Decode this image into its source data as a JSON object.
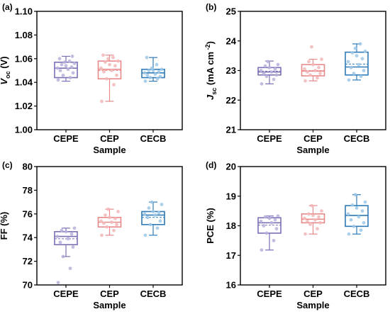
{
  "chart_data": [
    {
      "type": "box",
      "panel": "(a)",
      "categories": [
        "CEPE",
        "CEP",
        "CECB"
      ],
      "ylabel": {
        "main": "V",
        "sub": "oc",
        "unit": " (V)"
      },
      "xlabel": "Sample",
      "ylim": [
        1.0,
        1.1
      ],
      "yticks": [
        "1.00",
        "1.02",
        "1.04",
        "1.06",
        "1.08",
        "1.10"
      ],
      "ytick_values": [
        1.0,
        1.02,
        1.04,
        1.06,
        1.08,
        1.1
      ],
      "boxes": [
        {
          "min": 1.041,
          "q1": 1.044,
          "median": 1.052,
          "mean": 1.052,
          "q3": 1.057,
          "max": 1.062
        },
        {
          "min": 1.024,
          "q1": 1.043,
          "median": 1.051,
          "mean": 1.05,
          "q3": 1.058,
          "max": 1.063
        },
        {
          "min": 1.041,
          "q1": 1.044,
          "median": 1.048,
          "mean": 1.048,
          "q3": 1.051,
          "max": 1.061
        }
      ],
      "points": [
        [
          1.042,
          1.044,
          1.046,
          1.048,
          1.05,
          1.051,
          1.052,
          1.053,
          1.054,
          1.055,
          1.056,
          1.057,
          1.058,
          1.06,
          1.062
        ],
        [
          1.024,
          1.038,
          1.043,
          1.046,
          1.049,
          1.05,
          1.052,
          1.054,
          1.055,
          1.057,
          1.058,
          1.06,
          1.061,
          1.063
        ],
        [
          1.041,
          1.043,
          1.044,
          1.045,
          1.046,
          1.047,
          1.048,
          1.049,
          1.05,
          1.05,
          1.051,
          1.052,
          1.055,
          1.061
        ]
      ]
    },
    {
      "type": "box",
      "panel": "(b)",
      "categories": [
        "CEPE",
        "CEP",
        "CECB"
      ],
      "ylabel": {
        "main": "J",
        "sub": "sc",
        "unit": " (mA cm",
        "sup": " -2",
        "end": ")"
      },
      "xlabel": "Sample",
      "ylim": [
        21,
        25
      ],
      "yticks": [
        "21",
        "22",
        "23",
        "24",
        "25"
      ],
      "ytick_values": [
        21,
        22,
        23,
        24,
        25
      ],
      "boxes": [
        {
          "min": 22.55,
          "q1": 22.85,
          "median": 22.95,
          "mean": 22.98,
          "q3": 23.1,
          "max": 23.32
        },
        {
          "min": 22.65,
          "q1": 22.82,
          "median": 22.98,
          "mean": 23.0,
          "q3": 23.2,
          "max": 23.38
        },
        {
          "min": 22.68,
          "q1": 22.85,
          "median": 23.12,
          "mean": 23.22,
          "q3": 23.62,
          "max": 23.9
        }
      ],
      "points": [
        [
          22.55,
          22.7,
          22.8,
          22.85,
          22.9,
          22.95,
          23.0,
          23.05,
          23.1,
          23.15,
          23.2,
          23.3
        ],
        [
          22.65,
          22.75,
          22.85,
          22.9,
          22.95,
          23.0,
          23.05,
          23.1,
          23.2,
          23.3,
          23.38,
          23.8
        ],
        [
          22.68,
          22.8,
          22.9,
          23.0,
          23.1,
          23.2,
          23.3,
          23.4,
          23.5,
          23.6,
          23.65,
          23.75,
          23.9
        ]
      ]
    },
    {
      "type": "box",
      "panel": "(c)",
      "categories": [
        "CEPE",
        "CEP",
        "CECB"
      ],
      "ylabel": {
        "main": "FF (%)"
      },
      "xlabel": "Sample",
      "ylim": [
        70,
        80
      ],
      "yticks": [
        "70",
        "72",
        "74",
        "76",
        "78",
        "80"
      ],
      "ytick_values": [
        70,
        72,
        74,
        76,
        78,
        80
      ],
      "boxes": [
        {
          "min": 72.4,
          "q1": 73.4,
          "median": 74.1,
          "mean": 73.9,
          "q3": 74.5,
          "max": 74.8
        },
        {
          "min": 74.2,
          "q1": 74.9,
          "median": 75.3,
          "mean": 75.3,
          "q3": 75.7,
          "max": 76.4
        },
        {
          "min": 74.2,
          "q1": 75.1,
          "median": 75.9,
          "mean": 75.7,
          "q3": 76.2,
          "max": 77.0
        }
      ],
      "points": [
        [
          70.2,
          71.4,
          72.4,
          73.2,
          73.6,
          73.9,
          74.1,
          74.3,
          74.5,
          74.6,
          74.8
        ],
        [
          74.2,
          74.6,
          74.9,
          75.1,
          75.2,
          75.3,
          75.4,
          75.6,
          75.7,
          75.9,
          76.2,
          76.4
        ],
        [
          74.2,
          74.8,
          75.1,
          75.4,
          75.7,
          75.9,
          76.0,
          76.1,
          76.2,
          76.5,
          76.8,
          77.0
        ]
      ]
    },
    {
      "type": "box",
      "panel": "(d)",
      "categories": [
        "CEPE",
        "CEP",
        "CECB"
      ],
      "ylabel": {
        "main": "PCE (%)"
      },
      "xlabel": "Sample",
      "ylim": [
        16,
        20
      ],
      "yticks": [
        "16",
        "17",
        "18",
        "19",
        "20"
      ],
      "ytick_values": [
        16,
        17,
        18,
        19,
        20
      ],
      "boxes": [
        {
          "min": 17.18,
          "q1": 17.75,
          "median": 18.1,
          "mean": 18.02,
          "q3": 18.27,
          "max": 18.33
        },
        {
          "min": 17.72,
          "q1": 18.1,
          "median": 18.22,
          "mean": 18.22,
          "q3": 18.4,
          "max": 18.68
        },
        {
          "min": 17.72,
          "q1": 17.98,
          "median": 18.35,
          "mean": 18.35,
          "q3": 18.68,
          "max": 19.05
        }
      ],
      "points": [
        [
          17.18,
          17.5,
          17.75,
          17.9,
          18.0,
          18.1,
          18.15,
          18.2,
          18.25,
          18.3,
          18.33
        ],
        [
          17.72,
          17.9,
          18.05,
          18.1,
          18.15,
          18.2,
          18.25,
          18.3,
          18.35,
          18.4,
          18.5,
          18.68
        ],
        [
          17.72,
          17.85,
          17.98,
          18.1,
          18.2,
          18.3,
          18.4,
          18.5,
          18.6,
          18.7,
          18.8,
          19.05
        ]
      ]
    }
  ],
  "colors": {
    "series": [
      "#7b6fb5",
      "#e8898a",
      "#2e7bb8"
    ],
    "points": [
      "#b7b1d9",
      "#f2b7b7",
      "#9ec7e6"
    ]
  }
}
